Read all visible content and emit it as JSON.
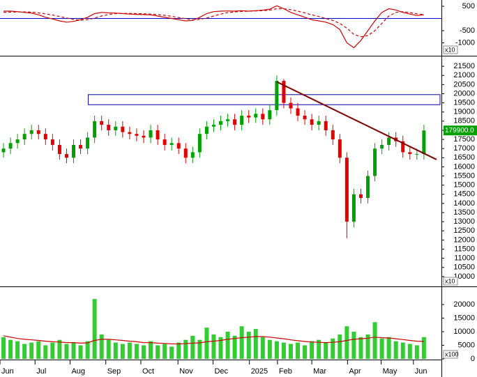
{
  "chart_data": [
    {
      "type": "line",
      "ylim": [
        -1470,
        757
      ],
      "yticks": [
        500,
        -500,
        -1000
      ],
      "xlim": [
        0,
        63
      ],
      "scale_label": "x10",
      "zero_color": "#0000cc",
      "series": [
        {
          "color": "#cc0000",
          "values": [
            300,
            300,
            280,
            250,
            220,
            150,
            50,
            -20,
            -100,
            -150,
            -120,
            -50,
            50,
            200,
            250,
            230,
            220,
            200,
            180,
            170,
            160,
            150,
            100,
            50,
            0,
            -50,
            -100,
            -80,
            50,
            200,
            280,
            300,
            310,
            300,
            320,
            300,
            320,
            340,
            380,
            520,
            400,
            250,
            150,
            50,
            -50,
            -100,
            -150,
            -250,
            -450,
            -1000,
            -1200,
            -900,
            -500,
            -100,
            250,
            400,
            350,
            250,
            180,
            120,
            150
          ]
        },
        {
          "color": "#cc0000",
          "dashed": true,
          "values": [
            250,
            260,
            270,
            270,
            260,
            230,
            190,
            140,
            80,
            20,
            -40,
            -70,
            -50,
            20,
            100,
            160,
            200,
            210,
            205,
            200,
            190,
            180,
            160,
            130,
            90,
            40,
            -10,
            -50,
            -40,
            20,
            100,
            180,
            240,
            270,
            290,
            300,
            310,
            320,
            340,
            400,
            400,
            360,
            300,
            230,
            150,
            80,
            0,
            -80,
            -200,
            -400,
            -650,
            -750,
            -700,
            -500,
            -200,
            100,
            250,
            280,
            240,
            190,
            160
          ]
        }
      ]
    },
    {
      "type": "candlestick",
      "ylim": [
        9500,
        22000
      ],
      "xlim": [
        0,
        63
      ],
      "scale_label": "x10",
      "yticks": [
        10000,
        10500,
        11000,
        11500,
        12000,
        12500,
        13000,
        13500,
        14000,
        14500,
        15000,
        15500,
        16000,
        16500,
        17000,
        17500,
        18000,
        18500,
        19000,
        19500,
        20000,
        20500,
        21000,
        21500
      ],
      "up_color": "#00a000",
      "down_color": "#e00000",
      "last_price_label": "179900.0",
      "open": [
        16800,
        17000,
        17300,
        17500,
        17800,
        18000,
        17800,
        17500,
        17200,
        16700,
        16500,
        17200,
        17000,
        17600,
        18500,
        18300,
        18000,
        18200,
        17900,
        17800,
        17700,
        17600,
        18000,
        17500,
        17200,
        17300,
        17000,
        16500,
        16800,
        17800,
        18200,
        18300,
        18500,
        18600,
        18300,
        18800,
        18700,
        18900,
        18600,
        19100,
        20700,
        19500,
        19200,
        18800,
        18600,
        18300,
        18500,
        18000,
        17500,
        16500,
        13000,
        14500,
        14300,
        15500,
        17000,
        17200,
        17600,
        17400,
        16800,
        16700,
        16700
      ],
      "high": [
        17300,
        17600,
        17800,
        18100,
        18300,
        18300,
        18100,
        17800,
        17500,
        17000,
        17500,
        17500,
        17900,
        18800,
        18800,
        18600,
        18500,
        18500,
        18200,
        18100,
        18000,
        18300,
        18300,
        17800,
        17600,
        17600,
        17300,
        17100,
        18100,
        18500,
        18600,
        18800,
        18900,
        18900,
        19100,
        19100,
        19200,
        19200,
        19400,
        21000,
        20800,
        19800,
        19500,
        19100,
        18900,
        18800,
        18800,
        18300,
        17800,
        16800,
        14800,
        14800,
        15800,
        17300,
        17500,
        17900,
        17900,
        17700,
        17100,
        17000,
        18300
      ],
      "low": [
        16500,
        16700,
        17000,
        17200,
        17500,
        17500,
        17200,
        16900,
        16400,
        16200,
        16200,
        16700,
        16700,
        17300,
        18000,
        17700,
        17700,
        17600,
        17500,
        17400,
        17300,
        17300,
        17200,
        16900,
        16900,
        16700,
        16200,
        16200,
        16500,
        17500,
        17900,
        18000,
        18200,
        18000,
        18000,
        18400,
        18400,
        18300,
        18300,
        18800,
        19200,
        18900,
        18500,
        18300,
        18000,
        18000,
        17700,
        17200,
        16200,
        12100,
        12700,
        14000,
        14000,
        15200,
        16700,
        16900,
        17100,
        16500,
        16400,
        16400,
        16400
      ],
      "close": [
        17000,
        17300,
        17500,
        17800,
        18000,
        17800,
        17500,
        17200,
        16700,
        16500,
        17200,
        17000,
        17600,
        18500,
        18300,
        18000,
        18200,
        17900,
        17800,
        17700,
        17600,
        18000,
        17500,
        17200,
        17300,
        17000,
        16500,
        16800,
        17800,
        18200,
        18300,
        18500,
        18600,
        18300,
        18800,
        18700,
        18900,
        18600,
        19100,
        20700,
        19500,
        19200,
        18800,
        18600,
        18300,
        18500,
        18000,
        17500,
        16500,
        13000,
        14500,
        14300,
        15500,
        17000,
        17200,
        17600,
        17400,
        16800,
        16700,
        16700,
        17990
      ],
      "trendline": {
        "color": "#800000",
        "x": [
          39.5,
          62.3
        ],
        "y": [
          20650,
          16400
        ]
      },
      "zone": {
        "color": "#0000aa",
        "x": [
          12.6,
          62.8
        ],
        "y": [
          19400,
          19950
        ]
      }
    },
    {
      "type": "bar",
      "ylim": [
        0,
        26400
      ],
      "yticks": [
        0,
        5000,
        10000,
        15000,
        20000
      ],
      "xlim": [
        0,
        63
      ],
      "scale_label": "x100",
      "xticks": [
        {
          "value": 0,
          "label": "Jun"
        },
        {
          "value": 5,
          "label": "Jul"
        },
        {
          "value": 10,
          "label": "Aug"
        },
        {
          "value": 15.1,
          "label": "Sep"
        },
        {
          "value": 20.1,
          "label": "Oct"
        },
        {
          "value": 25.4,
          "label": "Nov"
        },
        {
          "value": 30.4,
          "label": "Dec"
        },
        {
          "value": 35.6,
          "label": "2025"
        },
        {
          "value": 39.6,
          "label": "Feb"
        },
        {
          "value": 44.5,
          "label": "Mar"
        },
        {
          "value": 49.6,
          "label": "Apr"
        },
        {
          "value": 54.4,
          "label": "May"
        },
        {
          "value": 59,
          "label": "Jun"
        }
      ],
      "series": [
        {
          "color": "#33cc33",
          "values": [
            8000,
            7000,
            6500,
            5500,
            6000,
            6500,
            5000,
            6000,
            7000,
            5500,
            6000,
            5000,
            6500,
            22000,
            9000,
            7000,
            6000,
            5500,
            6000,
            5500,
            5000,
            6500,
            5000,
            5500,
            4500,
            6000,
            7000,
            8500,
            7000,
            11500,
            9000,
            8000,
            10000,
            8500,
            12000,
            10000,
            11000,
            8000,
            7000,
            6500,
            6000,
            5500,
            6000,
            5000,
            6500,
            7000,
            6000,
            7500,
            9000,
            12000,
            10000,
            8000,
            9000,
            13500,
            7500,
            8000,
            6500,
            6000,
            5500,
            5000,
            8000
          ]
        },
        {
          "color": "#cc0000",
          "kind": "line",
          "values": [
            8500,
            8000,
            7500,
            7200,
            7000,
            6800,
            6500,
            6300,
            6200,
            6000,
            6000,
            5800,
            5900,
            6800,
            7200,
            7200,
            7000,
            6800,
            6500,
            6300,
            6000,
            6000,
            5800,
            5700,
            5500,
            5500,
            5600,
            5800,
            5900,
            6300,
            6500,
            6800,
            7200,
            7500,
            7800,
            8000,
            8200,
            8200,
            8000,
            7700,
            7400,
            7000,
            6700,
            6400,
            6200,
            6100,
            6000,
            6100,
            6300,
            6800,
            7200,
            7400,
            7600,
            8000,
            7800,
            7700,
            7400,
            7100,
            6800,
            6500,
            6400
          ]
        }
      ]
    }
  ]
}
